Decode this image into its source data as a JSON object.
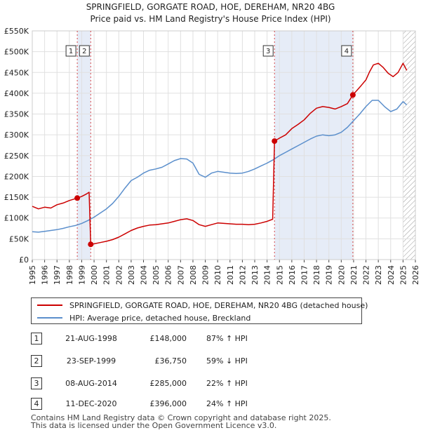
{
  "chart_data": {
    "type": "line",
    "title_line1": "SPRINGFIELD, GORGATE ROAD, HOE, DEREHAM, NR20 4BG",
    "title_line2": "Price paid vs. HM Land Registry's House Price Index (HPI)",
    "xlim": [
      1995,
      2026
    ],
    "ylim": [
      0,
      550000
    ],
    "y_ticks": [
      {
        "value": 0,
        "label": "£0"
      },
      {
        "value": 50000,
        "label": "£50K"
      },
      {
        "value": 100000,
        "label": "£100K"
      },
      {
        "value": 150000,
        "label": "£150K"
      },
      {
        "value": 200000,
        "label": "£200K"
      },
      {
        "value": 250000,
        "label": "£250K"
      },
      {
        "value": 300000,
        "label": "£300K"
      },
      {
        "value": 350000,
        "label": "£350K"
      },
      {
        "value": 400000,
        "label": "£400K"
      },
      {
        "value": 450000,
        "label": "£450K"
      },
      {
        "value": 500000,
        "label": "£500K"
      },
      {
        "value": 550000,
        "label": "£550K"
      }
    ],
    "x_ticks": [
      "1995",
      "1996",
      "1997",
      "1998",
      "1999",
      "2000",
      "2001",
      "2002",
      "2003",
      "2004",
      "2005",
      "2006",
      "2007",
      "2008",
      "2009",
      "2010",
      "2011",
      "2012",
      "2013",
      "2014",
      "2015",
      "2016",
      "2017",
      "2018",
      "2019",
      "2020",
      "2021",
      "2022",
      "2023",
      "2024",
      "2025",
      "2026"
    ],
    "shaded_periods": [
      [
        1998.64,
        1999.73
      ],
      [
        2014.6,
        2020.94
      ]
    ],
    "future_hatch_start": 2025.0,
    "series": [
      {
        "name": "SPRINGFIELD, GORGATE ROAD, HOE, DEREHAM, NR20 4BG (detached house)",
        "color": "#cc0000",
        "x": [
          1995.0,
          1995.5,
          1996.0,
          1996.5,
          1997.0,
          1997.5,
          1998.0,
          1998.64,
          1999.0,
          1999.4,
          1999.6,
          1999.73,
          2000.0,
          2000.5,
          2001.0,
          2001.5,
          2002.0,
          2002.5,
          2003.0,
          2003.5,
          2004.0,
          2004.5,
          2005.0,
          2005.5,
          2006.0,
          2006.5,
          2007.0,
          2007.5,
          2008.0,
          2008.5,
          2009.0,
          2009.5,
          2010.0,
          2010.5,
          2011.0,
          2011.5,
          2012.0,
          2012.5,
          2013.0,
          2013.5,
          2014.0,
          2014.45,
          2014.6,
          2015.0,
          2015.5,
          2016.0,
          2016.5,
          2017.0,
          2017.5,
          2018.0,
          2018.5,
          2019.0,
          2019.5,
          2020.0,
          2020.5,
          2020.94,
          2021.3,
          2021.6,
          2022.0,
          2022.3,
          2022.6,
          2023.0,
          2023.4,
          2023.8,
          2024.2,
          2024.6,
          2025.0,
          2025.3
        ],
        "y": [
          128000,
          122000,
          126000,
          124000,
          132000,
          136000,
          142000,
          148000,
          152000,
          158000,
          162000,
          36750,
          38000,
          41000,
          44000,
          48000,
          54000,
          62000,
          70000,
          76000,
          80000,
          83000,
          84000,
          86000,
          88000,
          92000,
          96000,
          98000,
          94000,
          84000,
          80000,
          84000,
          88000,
          87000,
          86000,
          85000,
          85000,
          84000,
          85000,
          88000,
          92000,
          97000,
          285000,
          292000,
          300000,
          315000,
          325000,
          336000,
          352000,
          364000,
          368000,
          366000,
          362000,
          368000,
          375000,
          396000,
          408000,
          418000,
          432000,
          452000,
          468000,
          472000,
          462000,
          448000,
          440000,
          450000,
          472000,
          455000
        ]
      },
      {
        "name": "HPI: Average price, detached house, Breckland",
        "color": "#5b8fcc",
        "x": [
          1995.0,
          1995.5,
          1996.0,
          1996.5,
          1997.0,
          1997.5,
          1998.0,
          1998.5,
          1999.0,
          1999.5,
          2000.0,
          2000.5,
          2001.0,
          2001.5,
          2002.0,
          2002.5,
          2003.0,
          2003.5,
          2004.0,
          2004.5,
          2005.0,
          2005.5,
          2006.0,
          2006.5,
          2007.0,
          2007.5,
          2008.0,
          2008.5,
          2009.0,
          2009.5,
          2010.0,
          2010.5,
          2011.0,
          2011.5,
          2012.0,
          2012.5,
          2013.0,
          2013.5,
          2014.0,
          2014.5,
          2015.0,
          2015.5,
          2016.0,
          2016.5,
          2017.0,
          2017.5,
          2018.0,
          2018.5,
          2019.0,
          2019.5,
          2020.0,
          2020.5,
          2021.0,
          2021.5,
          2022.0,
          2022.5,
          2023.0,
          2023.5,
          2024.0,
          2024.5,
          2025.0,
          2025.3
        ],
        "y": [
          67000,
          66000,
          68000,
          70000,
          72000,
          75000,
          79000,
          82000,
          87000,
          94000,
          102000,
          112000,
          122000,
          135000,
          152000,
          172000,
          190000,
          198000,
          208000,
          215000,
          218000,
          222000,
          230000,
          238000,
          243000,
          242000,
          232000,
          205000,
          198000,
          208000,
          212000,
          210000,
          208000,
          207000,
          208000,
          212000,
          218000,
          225000,
          232000,
          240000,
          250000,
          258000,
          266000,
          274000,
          282000,
          290000,
          297000,
          300000,
          298000,
          300000,
          306000,
          318000,
          334000,
          350000,
          368000,
          383000,
          383000,
          368000,
          356000,
          362000,
          380000,
          372000
        ]
      }
    ],
    "markers": [
      {
        "label": "1",
        "x": 1998.64,
        "y": 148000
      },
      {
        "label": "2",
        "x": 1999.73,
        "y": 36750
      },
      {
        "label": "3",
        "x": 2014.6,
        "y": 285000
      },
      {
        "label": "4",
        "x": 2020.94,
        "y": 396000
      }
    ]
  },
  "legend": {
    "property_label": "SPRINGFIELD, GORGATE ROAD, HOE, DEREHAM, NR20 4BG (detached house)",
    "hpi_label": "HPI: Average price, detached house, Breckland",
    "property_color": "#cc0000",
    "hpi_color": "#5b8fcc"
  },
  "sales": [
    {
      "num": "1",
      "date": "21-AUG-1998",
      "price": "£148,000",
      "hpi": "87% ↑ HPI"
    },
    {
      "num": "2",
      "date": "23-SEP-1999",
      "price": "£36,750",
      "hpi": "59% ↓ HPI"
    },
    {
      "num": "3",
      "date": "08-AUG-2014",
      "price": "£285,000",
      "hpi": "22% ↑ HPI"
    },
    {
      "num": "4",
      "date": "11-DEC-2020",
      "price": "£396,000",
      "hpi": "24% ↑ HPI"
    }
  ],
  "footer": {
    "line1": "Contains HM Land Registry data © Crown copyright and database right 2025.",
    "line2": "This data is licensed under the Open Government Licence v3.0."
  }
}
